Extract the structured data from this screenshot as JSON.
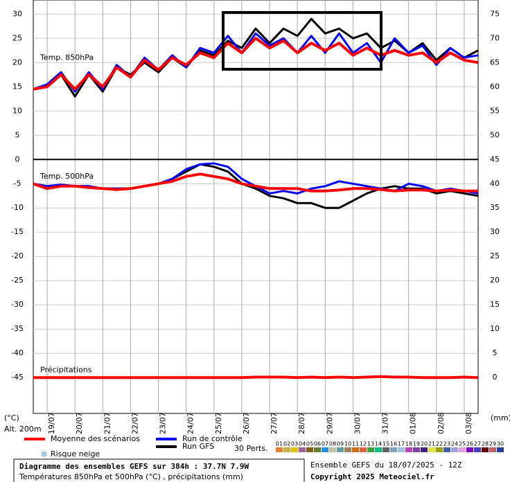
{
  "chart_data": {
    "type": "line",
    "title": "Diagramme des ensembles GEFS sur 384h : 37.7N 7.9W",
    "subtitle": "Températures 850hPa et 500hPa (°C) , précipitations (mm)",
    "run_info": "Ensemble GEFS du 18/07/2025 - 12Z",
    "copyright": "Copyright 2025 Meteociel.fr",
    "y_label": "(°C)",
    "altitude": "Alt. 200m",
    "y2_label": "(mm)",
    "panel_labels": [
      {
        "text": "Temp. 850hPa",
        "value": 21
      },
      {
        "text": "Temp. 500hPa",
        "value": -3.5
      },
      {
        "text": "Précipitations",
        "value": -43.5
      }
    ],
    "x": [
      0,
      12,
      24,
      36,
      48,
      60,
      72,
      84,
      96,
      108,
      120,
      132,
      144,
      156,
      168,
      180,
      192,
      204,
      216,
      228,
      240,
      252,
      264,
      276,
      288,
      300,
      312,
      324,
      336,
      348,
      360,
      372,
      384
    ],
    "xlim": [
      0,
      384
    ],
    "xticks": [
      {
        "value": 12,
        "label": "19/07"
      },
      {
        "value": 36,
        "label": "20/07"
      },
      {
        "value": 60,
        "label": "21/07"
      },
      {
        "value": 84,
        "label": "22/07"
      },
      {
        "value": 108,
        "label": "23/07"
      },
      {
        "value": 132,
        "label": "24/07"
      },
      {
        "value": 156,
        "label": "25/07"
      },
      {
        "value": 180,
        "label": "26/07"
      },
      {
        "value": 204,
        "label": "27/07"
      },
      {
        "value": 228,
        "label": "28/07"
      },
      {
        "value": 252,
        "label": "29/07"
      },
      {
        "value": 276,
        "label": "30/07"
      },
      {
        "value": 300,
        "label": "31/07"
      },
      {
        "value": 324,
        "label": "01/08"
      },
      {
        "value": 348,
        "label": "02/08"
      },
      {
        "value": 372,
        "label": "03/08"
      }
    ],
    "ylim": [
      -52.4,
      32.9
    ],
    "yticks": [
      30,
      25,
      20,
      15,
      10,
      5,
      0,
      -5,
      -10,
      -15,
      -20,
      -25,
      -30,
      -35,
      -40,
      -45
    ],
    "y2lim": [
      -7.4,
      77.9
    ],
    "y2ticks": [
      75,
      70,
      65,
      60,
      55,
      50,
      45,
      40,
      35,
      30,
      25,
      20,
      15,
      10,
      5,
      0
    ],
    "panel_divider": 0,
    "grid": true,
    "series": [
      {
        "name": "Moyenne des scénarios",
        "color": "#ff0000",
        "temp850": [
          14.5,
          15,
          17.5,
          14.5,
          17.5,
          15,
          19,
          17,
          20.5,
          18.5,
          21,
          19.5,
          22,
          21,
          24,
          22,
          25,
          23,
          24.5,
          22,
          24,
          22.5,
          24,
          21.5,
          23,
          21.5,
          22.5,
          21.5,
          22,
          20,
          22,
          20.5,
          20
        ],
        "temp500": [
          -5,
          -6,
          -5.5,
          -5.5,
          -5.8,
          -6,
          -6.2,
          -6,
          -5.5,
          -5,
          -4.5,
          -3.5,
          -3,
          -3.5,
          -4,
          -5,
          -5.5,
          -6,
          -6,
          -6,
          -6.5,
          -6.5,
          -6.3,
          -6,
          -6,
          -6.2,
          -6.5,
          -6.3,
          -6.3,
          -6.5,
          -6.3,
          -6.5,
          -6.5
        ],
        "precip": [
          0,
          0,
          0,
          0,
          0,
          0,
          0,
          0,
          0,
          0,
          0,
          0,
          0,
          0,
          0,
          0,
          0.1,
          0.1,
          0.1,
          0,
          0.1,
          0,
          0.1,
          0,
          0.1,
          0.2,
          0.1,
          0.1,
          0,
          0,
          0,
          0.1,
          0
        ]
      },
      {
        "name": "Run de contrôle",
        "color": "#0000ff",
        "temp850": [
          14.5,
          15.5,
          18,
          14,
          18,
          14.5,
          19.5,
          17,
          21,
          18.5,
          21.5,
          19,
          23,
          22,
          25.5,
          22,
          26,
          23.5,
          25,
          22,
          25.5,
          22,
          26,
          22,
          24,
          20,
          25,
          22,
          23.5,
          19.5,
          23,
          21,
          21.5
        ],
        "temp500": [
          -5,
          -5.5,
          -5.2,
          -5.5,
          -5.5,
          -6,
          -6,
          -6,
          -5.5,
          -5,
          -4,
          -2,
          -1,
          -0.8,
          -1.5,
          -4,
          -5.5,
          -7,
          -6.5,
          -7,
          -6,
          -5.5,
          -4.5,
          -5,
          -5.5,
          -6,
          -6.5,
          -5,
          -5.5,
          -6.5,
          -6,
          -6.5,
          -7
        ]
      },
      {
        "name": "Run GFS",
        "color": "#000000",
        "temp850": [
          14.5,
          15,
          17.5,
          13,
          17.5,
          14,
          19,
          17.5,
          20,
          18,
          21,
          19,
          22.5,
          21.5,
          24.5,
          23,
          27,
          24,
          27,
          25.5,
          29,
          26,
          27,
          25,
          26,
          23,
          24.5,
          22,
          24,
          20.5,
          23,
          21,
          22.5
        ],
        "temp500": [
          -5,
          -5.5,
          -5.2,
          -5.5,
          -5.5,
          -6,
          -6,
          -6,
          -5.5,
          -5,
          -4,
          -2.5,
          -1,
          -1.5,
          -2.5,
          -5,
          -6,
          -7.5,
          -8,
          -9,
          -9,
          -10,
          -10,
          -8.5,
          -7,
          -6,
          -5.5,
          -6,
          -6,
          -7,
          -6.5,
          -7,
          -7.5
        ]
      }
    ],
    "perturbations_label": "30 Perts.",
    "perturbations": [
      {
        "label": "01",
        "color": "#e08030"
      },
      {
        "label": "02",
        "color": "#c8b040"
      },
      {
        "label": "03",
        "color": "#e0c000"
      },
      {
        "label": "04",
        "color": "#a060a0"
      },
      {
        "label": "05",
        "color": "#806020"
      },
      {
        "label": "06",
        "color": "#608030"
      },
      {
        "label": "07",
        "color": "#2090e0"
      },
      {
        "label": "08",
        "color": "#c0c0a0"
      },
      {
        "label": "09",
        "color": "#60a0a0"
      },
      {
        "label": "10",
        "color": "#a08060"
      },
      {
        "label": "11",
        "color": "#d07010"
      },
      {
        "label": "12",
        "color": "#e06040"
      },
      {
        "label": "13",
        "color": "#40a040"
      },
      {
        "label": "14",
        "color": "#00c080"
      },
      {
        "label": "15",
        "color": "#606060"
      },
      {
        "label": "16",
        "color": "#80a0c0"
      },
      {
        "label": "17",
        "color": "#a0c0e0"
      },
      {
        "label": "18",
        "color": "#c040c0"
      },
      {
        "label": "19",
        "color": "#8040a0"
      },
      {
        "label": "20",
        "color": "#402080"
      },
      {
        "label": "21",
        "color": "#e0e040"
      },
      {
        "label": "22",
        "color": "#a0a000"
      },
      {
        "label": "23",
        "color": "#4060a0"
      },
      {
        "label": "24",
        "color": "#a0a0e0"
      },
      {
        "label": "25",
        "color": "#e0a0e0"
      },
      {
        "label": "26",
        "color": "#8000c0"
      },
      {
        "label": "27",
        "color": "#4040c0"
      },
      {
        "label": "28",
        "color": "#600000"
      },
      {
        "label": "29",
        "color": "#c06060"
      },
      {
        "label": "30",
        "color": "#2040a0"
      }
    ],
    "snow_label": "Risque neige"
  }
}
